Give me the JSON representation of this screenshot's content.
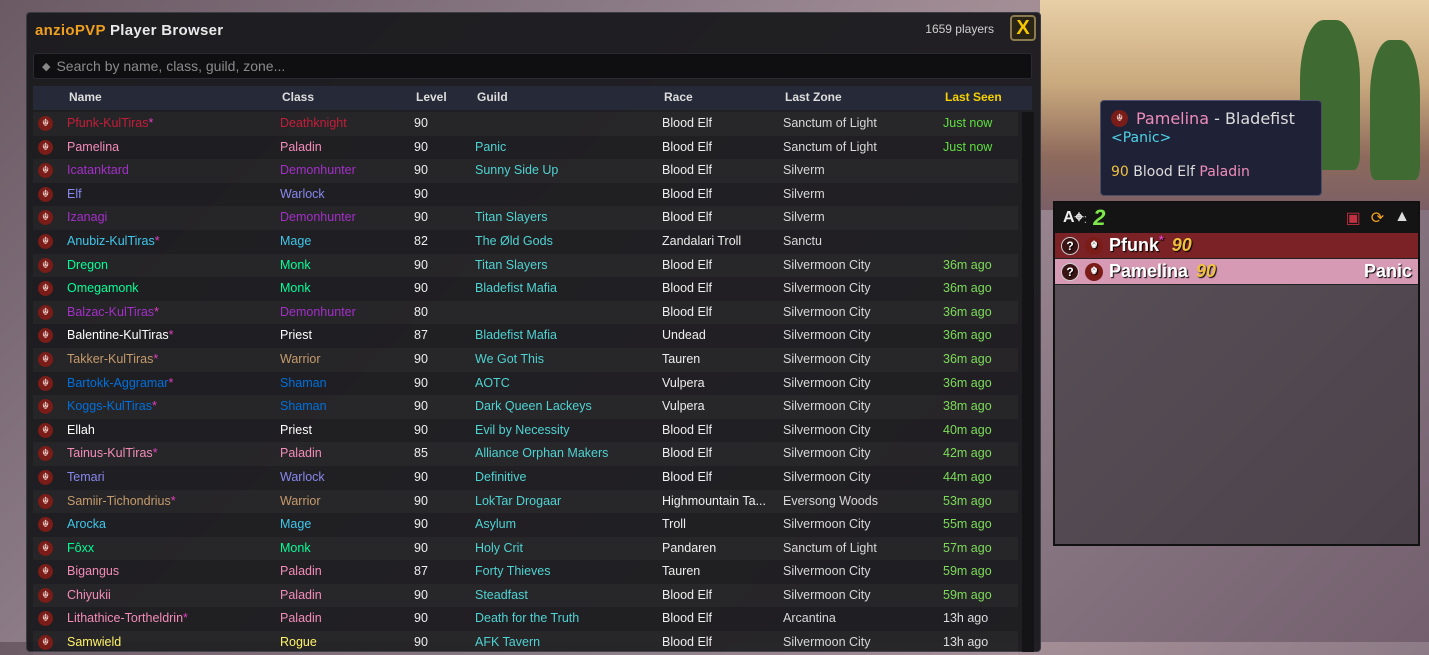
{
  "window": {
    "brand": "anzioPVP",
    "title": "Player Browser",
    "player_count": "1659 players",
    "close_label": "X",
    "search_placeholder": "Search by name, class, guild, zone..."
  },
  "columns": [
    "Name",
    "Class",
    "Level",
    "Guild",
    "Race",
    "Last Zone",
    "Last Seen"
  ],
  "class_colors": {
    "Deathknight": "#c41e3a",
    "Paladin": "#f48cba",
    "Demonhunter": "#a330c9",
    "Warlock": "#8788ee",
    "Mage": "#3fc7eb",
    "Monk": "#00ff98",
    "Priest": "#ffffff",
    "Warrior": "#c69b6d",
    "Shaman": "#0070dd",
    "Rogue": "#fff468"
  },
  "rows": [
    {
      "name": "Pfunk-KulTiras",
      "star": "*",
      "class": "Deathknight",
      "level": "90",
      "guild": "",
      "race": "Blood Elf",
      "zone": "Sanctum of Light",
      "seen": "Just now"
    },
    {
      "name": "Pamelina",
      "star": "",
      "class": "Paladin",
      "level": "90",
      "guild": "Panic",
      "race": "Blood Elf",
      "zone": "Sanctum of Light",
      "seen": "Just now"
    },
    {
      "name": "Icatanktard",
      "star": "",
      "class": "Demonhunter",
      "level": "90",
      "guild": "Sunny Side Up",
      "race": "Blood Elf",
      "zone": "Silverm",
      "seen": ""
    },
    {
      "name": "Elf",
      "star": "",
      "class": "Warlock",
      "level": "90",
      "guild": "",
      "race": "Blood Elf",
      "zone": "Silverm",
      "seen": ""
    },
    {
      "name": "Izanagi",
      "star": "",
      "class": "Demonhunter",
      "level": "90",
      "guild": "Titan Slayers",
      "race": "Blood Elf",
      "zone": "Silverm",
      "seen": ""
    },
    {
      "name": "Anubiz-KulTiras",
      "star": "*",
      "class": "Mage",
      "level": "82",
      "guild": "The Øld Gods",
      "race": "Zandalari Troll",
      "zone": "Sanctu",
      "seen": ""
    },
    {
      "name": "Dregon",
      "star": "",
      "class": "Monk",
      "level": "90",
      "guild": "Titan Slayers",
      "race": "Blood Elf",
      "zone": "Silvermoon City",
      "seen": "36m ago"
    },
    {
      "name": "Omegamonk",
      "star": "",
      "class": "Monk",
      "level": "90",
      "guild": "Bladefist Mafia",
      "race": "Blood Elf",
      "zone": "Silvermoon City",
      "seen": "36m ago"
    },
    {
      "name": "Balzac-KulTiras",
      "star": "*",
      "class": "Demonhunter",
      "level": "80",
      "guild": "",
      "race": "Blood Elf",
      "zone": "Silvermoon City",
      "seen": "36m ago"
    },
    {
      "name": "Balentine-KulTiras",
      "star": "*",
      "class": "Priest",
      "level": "87",
      "guild": "Bladefist Mafia",
      "race": "Undead",
      "zone": "Silvermoon City",
      "seen": "36m ago"
    },
    {
      "name": "Takker-KulTiras",
      "star": "*",
      "class": "Warrior",
      "level": "90",
      "guild": "We Got This",
      "race": "Tauren",
      "zone": "Silvermoon City",
      "seen": "36m ago"
    },
    {
      "name": "Bartokk-Aggramar",
      "star": "*",
      "class": "Shaman",
      "level": "90",
      "guild": "AOTC",
      "race": "Vulpera",
      "zone": "Silvermoon City",
      "seen": "36m ago"
    },
    {
      "name": "Koggs-KulTiras",
      "star": "*",
      "class": "Shaman",
      "level": "90",
      "guild": "Dark Queen Lackeys",
      "race": "Vulpera",
      "zone": "Silvermoon City",
      "seen": "38m ago"
    },
    {
      "name": "Ellah",
      "star": "",
      "class": "Priest",
      "level": "90",
      "guild": "Evil by Necessity",
      "race": "Blood Elf",
      "zone": "Silvermoon City",
      "seen": "40m ago"
    },
    {
      "name": "Tainus-KulTiras",
      "star": "*",
      "class": "Paladin",
      "level": "85",
      "guild": "Alliance Orphan Makers",
      "race": "Blood Elf",
      "zone": "Silvermoon City",
      "seen": "42m ago"
    },
    {
      "name": "Temari",
      "star": "",
      "class": "Warlock",
      "level": "90",
      "guild": "Definitive",
      "race": "Blood Elf",
      "zone": "Silvermoon City",
      "seen": "44m ago"
    },
    {
      "name": "Samiir-Tichondrius",
      "star": "*",
      "class": "Warrior",
      "level": "90",
      "guild": "LokTar Drogaar",
      "race": "Highmountain Ta...",
      "zone": "Eversong Woods",
      "seen": "53m ago"
    },
    {
      "name": "Arocka",
      "star": "",
      "class": "Mage",
      "level": "90",
      "guild": "Asylum",
      "race": "Troll",
      "zone": "Silvermoon City",
      "seen": "55m ago"
    },
    {
      "name": "Fôxx",
      "star": "",
      "class": "Monk",
      "level": "90",
      "guild": "Holy Crit",
      "race": "Pandaren",
      "zone": "Sanctum of Light",
      "seen": "57m ago"
    },
    {
      "name": "Bigangus",
      "star": "",
      "class": "Paladin",
      "level": "87",
      "guild": "Forty Thieves",
      "race": "Tauren",
      "zone": "Silvermoon City",
      "seen": "59m ago"
    },
    {
      "name": "Chiyukii",
      "star": "",
      "class": "Paladin",
      "level": "90",
      "guild": "Steadfast",
      "race": "Blood Elf",
      "zone": "Silvermoon City",
      "seen": "59m ago"
    },
    {
      "name": "Lithathice-Tortheldrin",
      "star": "*",
      "class": "Paladin",
      "level": "90",
      "guild": "Death for the Truth",
      "race": "Blood Elf",
      "zone": "Arcantina",
      "seen": "13h ago"
    },
    {
      "name": "Samwield",
      "star": "",
      "class": "Rogue",
      "level": "90",
      "guild": "AFK Tavern",
      "race": "Blood Elf",
      "zone": "Silvermoon City",
      "seen": "13h ago"
    }
  ],
  "tooltip": {
    "name": "Pamelina",
    "separator": " - ",
    "realm": "Bladefist",
    "guild": "<Panic>",
    "level": "90",
    "race": "Blood Elf",
    "class": "Paladin"
  },
  "group_panel": {
    "count": "2",
    "members": [
      {
        "q": "?",
        "name": "Pfunk",
        "star": "*",
        "level": "90",
        "guild": "",
        "color": "#7a2226"
      },
      {
        "q": "?",
        "name": "Pamelina",
        "star": "",
        "level": "90",
        "guild": "Panic",
        "color": "#d79ab4"
      }
    ]
  }
}
